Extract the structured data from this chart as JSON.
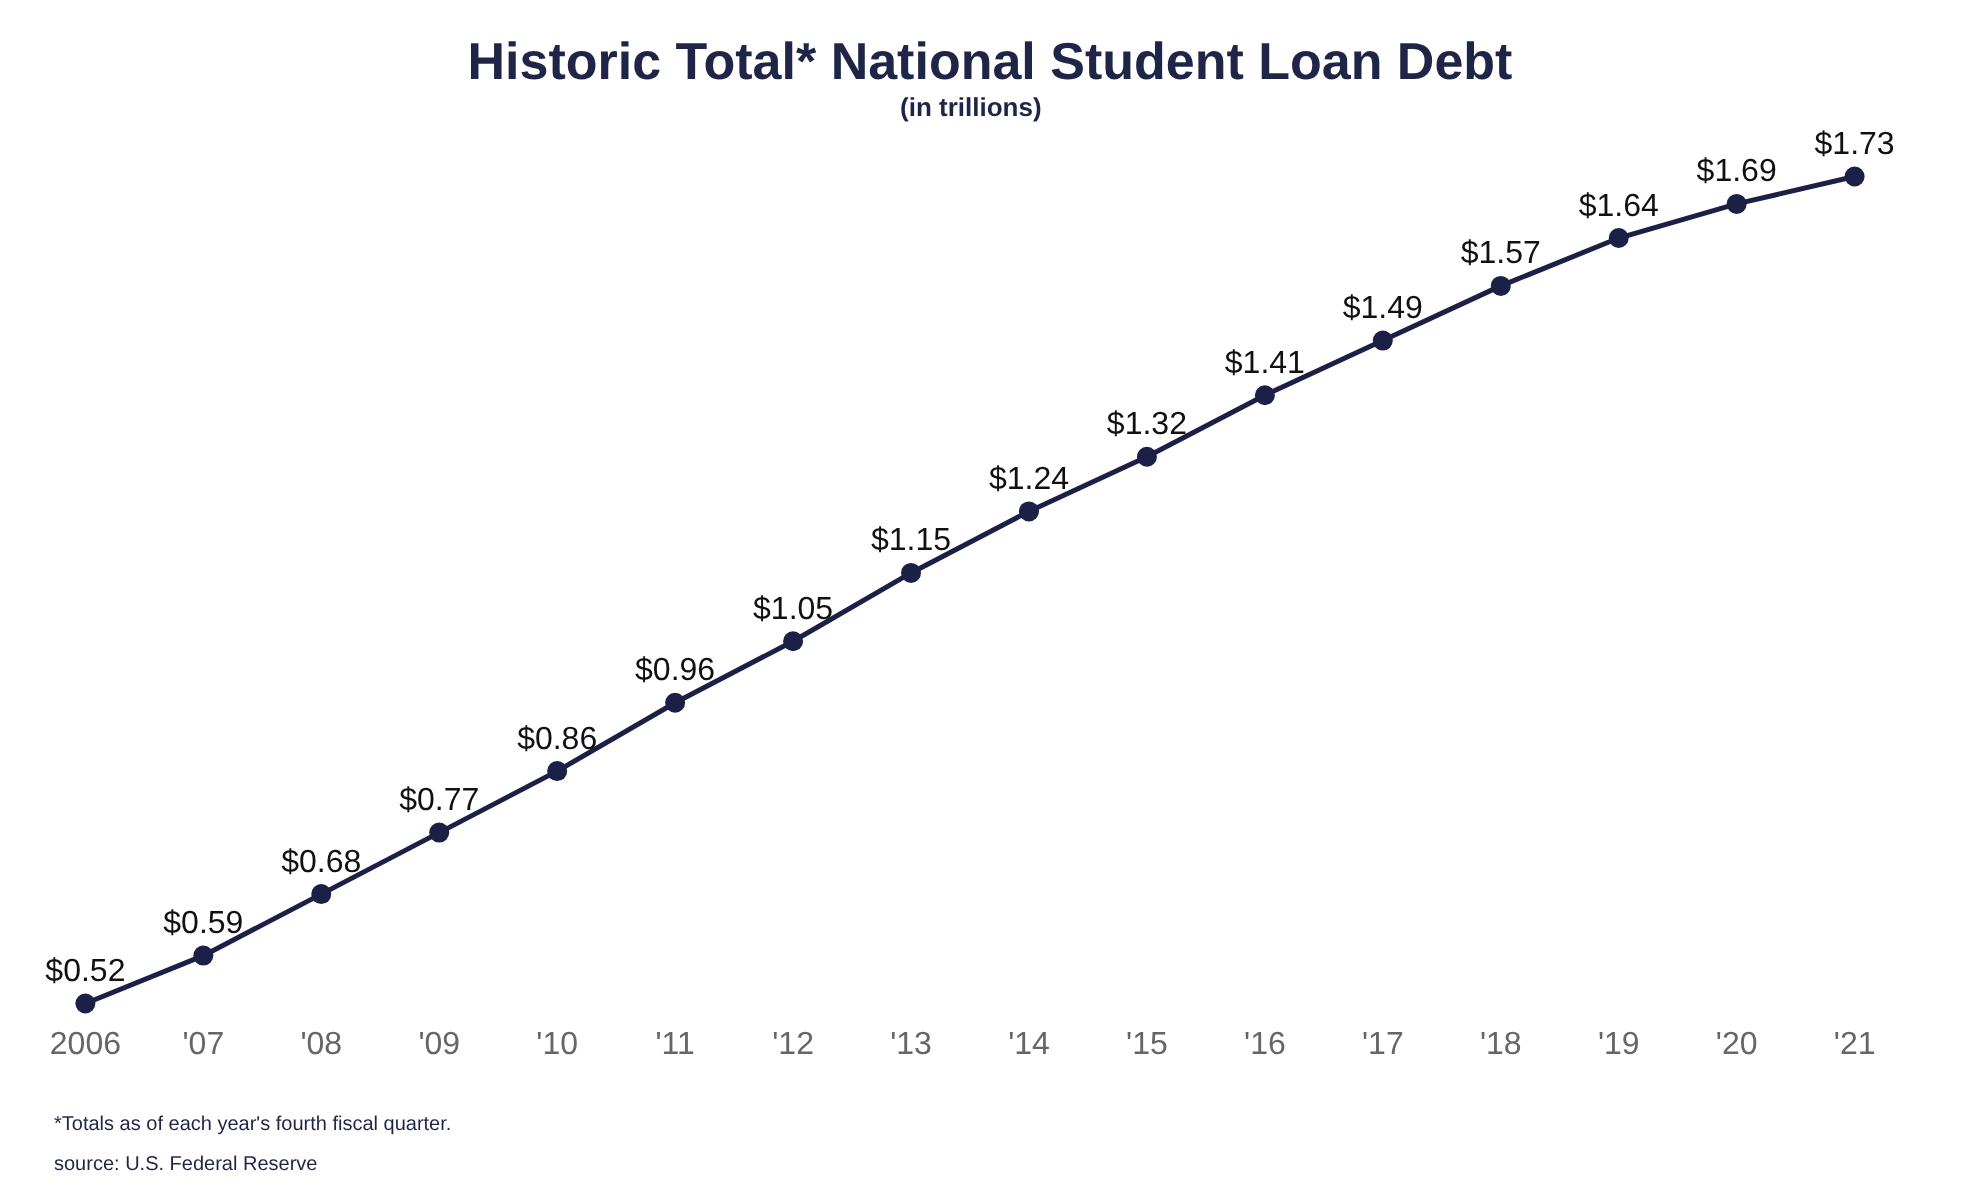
{
  "chart_data": {
    "type": "line",
    "title": "Historic Total* National Student Loan Debt",
    "subtitle": "(in trillions)",
    "categories": [
      "2006",
      "'07",
      "'08",
      "'09",
      "'10",
      "'11",
      "'12",
      "'13",
      "'14",
      "'15",
      "'16",
      "'17",
      "'18",
      "'19",
      "'20",
      "'21"
    ],
    "series": [
      {
        "color": "#1c2046",
        "values": [
          0.52,
          0.59,
          0.68,
          0.77,
          0.86,
          0.96,
          1.05,
          1.15,
          1.24,
          1.32,
          1.41,
          1.49,
          1.57,
          1.64,
          1.69,
          1.73
        ],
        "value_labels": [
          "$0.52",
          "$0.59",
          "$0.68",
          "$0.77",
          "$0.86",
          "$0.96",
          "$1.05",
          "$1.15",
          "$1.24",
          "$1.32",
          "$1.41",
          "$1.49",
          "$1.57",
          "$1.64",
          "$1.69",
          "$1.73"
        ]
      }
    ],
    "marker": "circle",
    "line_style": "solid",
    "tick_labels": "x",
    "annotations": [
      "*Totals as of each year's fourth fiscal quarter.",
      "source: U.S. Federal Reserve"
    ]
  }
}
